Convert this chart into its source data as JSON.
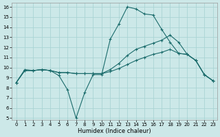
{
  "xlabel": "Humidex (Indice chaleur)",
  "bg_color": "#cce8e8",
  "grid_color": "#aad4d4",
  "line_color": "#1a6b6b",
  "xlim": [
    -0.5,
    23.5
  ],
  "ylim": [
    4.8,
    16.4
  ],
  "xticks": [
    0,
    1,
    2,
    3,
    4,
    5,
    6,
    7,
    8,
    9,
    10,
    11,
    12,
    13,
    14,
    15,
    16,
    17,
    18,
    19,
    20,
    21,
    22,
    23
  ],
  "yticks": [
    5,
    6,
    7,
    8,
    9,
    10,
    11,
    12,
    13,
    14,
    15,
    16
  ],
  "line1_x": [
    0,
    1,
    2,
    3,
    4,
    5,
    6,
    7,
    8,
    9,
    10,
    11,
    12,
    13,
    14,
    15,
    16,
    17,
    18,
    19,
    20,
    21,
    22,
    23
  ],
  "line1_y": [
    8.5,
    9.8,
    9.7,
    9.8,
    9.7,
    9.2,
    7.8,
    5.0,
    7.5,
    9.3,
    9.3,
    12.8,
    14.3,
    16.0,
    15.8,
    15.3,
    15.2,
    13.8,
    12.5,
    11.4,
    11.3,
    10.7,
    9.3,
    8.7
  ],
  "line2_x": [
    0,
    1,
    2,
    3,
    4,
    5,
    6,
    7,
    8,
    9,
    10,
    11,
    12,
    13,
    14,
    15,
    16,
    17,
    18,
    19,
    20,
    21,
    22,
    23
  ],
  "line2_y": [
    8.5,
    9.7,
    9.7,
    9.8,
    9.7,
    9.5,
    9.5,
    9.4,
    9.4,
    9.4,
    9.4,
    9.6,
    9.9,
    10.3,
    10.7,
    11.0,
    11.3,
    11.5,
    11.8,
    11.4,
    11.3,
    10.7,
    9.3,
    8.7
  ],
  "line3_x": [
    0,
    1,
    2,
    3,
    4,
    5,
    6,
    7,
    8,
    9,
    10,
    11,
    12,
    13,
    14,
    15,
    16,
    17,
    18,
    19,
    20,
    21,
    22,
    23
  ],
  "line3_y": [
    8.5,
    9.7,
    9.7,
    9.8,
    9.7,
    9.5,
    9.5,
    9.4,
    9.4,
    9.4,
    9.4,
    9.8,
    10.4,
    11.2,
    11.8,
    12.1,
    12.4,
    12.7,
    13.2,
    12.5,
    11.3,
    10.7,
    9.3,
    8.7
  ],
  "xlabel_fontsize": 6,
  "tick_fontsize": 5
}
